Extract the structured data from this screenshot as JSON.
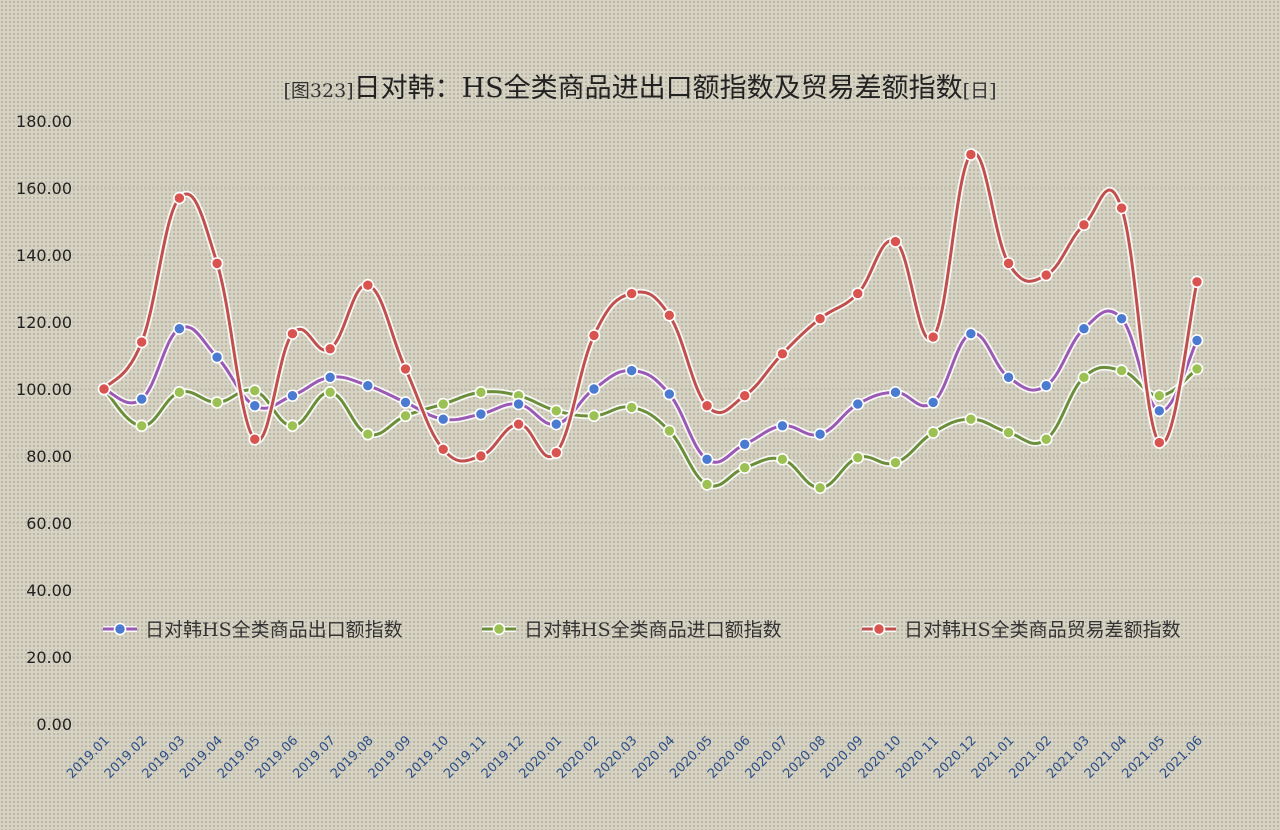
{
  "chart_data": {
    "type": "line",
    "title_prefix": "[图323]",
    "title": "日对韩：HS全类商品进出口额指数及贸易差额指数",
    "title_suffix": "[日]",
    "ylim": [
      0,
      180
    ],
    "yticks": [
      "0.00",
      "20.00",
      "40.00",
      "60.00",
      "80.00",
      "100.00",
      "120.00",
      "140.00",
      "160.00",
      "180.00"
    ],
    "grid": true,
    "legend_position": "lower-middle",
    "categories": [
      "2019.01",
      "2019.02",
      "2019.03",
      "2019.04",
      "2019.05",
      "2019.06",
      "2019.07",
      "2019.08",
      "2019.09",
      "2019.10",
      "2019.11",
      "2019.12",
      "2020.01",
      "2020.02",
      "2020.03",
      "2020.04",
      "2020.05",
      "2020.06",
      "2020.07",
      "2020.08",
      "2020.09",
      "2020.10",
      "2020.11",
      "2020.12",
      "2021.01",
      "2021.02",
      "2021.03",
      "2021.04",
      "2021.05",
      "2021.06"
    ],
    "series": [
      {
        "name": "日对韩HS全类商品出口额指数",
        "line_color": "#9b59b6",
        "marker_color": "#4a7bd0",
        "values": [
          100.0,
          97.0,
          118.0,
          109.5,
          95.0,
          98.0,
          103.5,
          101.0,
          96.0,
          91.0,
          92.5,
          95.5,
          89.5,
          100.0,
          105.5,
          98.5,
          79.0,
          83.5,
          89.0,
          86.5,
          95.5,
          99.0,
          96.0,
          116.5,
          103.5,
          101.0,
          118.0,
          121.0,
          93.5,
          114.5
        ]
      },
      {
        "name": "日对韩HS全类商品进口额指数",
        "line_color": "#6b8e3a",
        "marker_color": "#9bc153",
        "values": [
          100.0,
          89.0,
          99.0,
          96.0,
          99.5,
          89.0,
          99.0,
          86.5,
          92.0,
          95.5,
          99.0,
          98.0,
          93.5,
          92.0,
          94.5,
          87.5,
          71.5,
          76.5,
          79.0,
          70.5,
          79.5,
          78.0,
          87.0,
          91.0,
          87.0,
          85.0,
          103.5,
          105.5,
          98.0,
          106.0
        ]
      },
      {
        "name": "日对韩HS全类商品贸易差额指数",
        "line_color": "#c0504d",
        "marker_color": "#d9534f",
        "values": [
          100.0,
          114.0,
          157.0,
          137.5,
          85.0,
          116.5,
          112.0,
          131.0,
          106.0,
          82.0,
          80.0,
          89.5,
          81.0,
          116.0,
          128.5,
          122.0,
          95.0,
          98.0,
          110.5,
          121.0,
          128.5,
          144.0,
          115.5,
          170.0,
          137.5,
          134.0,
          149.0,
          154.0,
          84.0,
          132.0
        ]
      }
    ]
  }
}
